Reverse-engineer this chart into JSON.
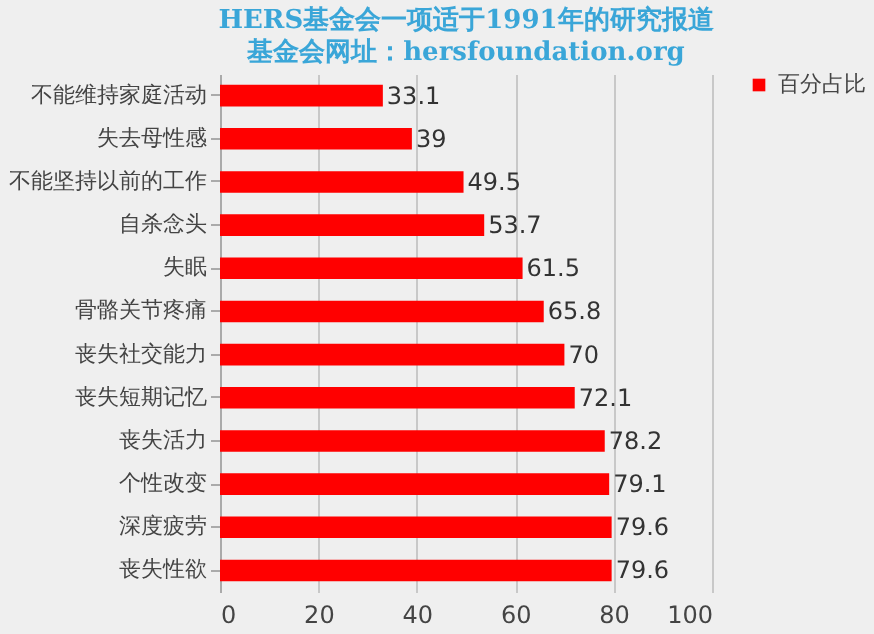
{
  "chart_data": {
    "type": "bar",
    "orientation": "horizontal",
    "title": "HERS基金会一项适于1991年的研究报道",
    "subtitle": "基金会网址：hersfoundation.org",
    "categories": [
      "不能维持家庭活动",
      "失去母性感",
      "不能坚持以前的工作",
      "自杀念头",
      "失眠",
      "骨骼关节疼痛",
      "丧失社交能力",
      "丧失短期记忆",
      "丧失活力",
      "个性改变",
      "深度疲劳",
      "丧失性欲"
    ],
    "series": [
      {
        "name": "百分占比",
        "color": "#ff0000",
        "values": [
          33.1,
          39,
          49.5,
          53.7,
          61.5,
          65.8,
          70,
          72.1,
          78.2,
          79.1,
          79.6,
          79.6
        ]
      }
    ],
    "xlim": [
      0,
      100
    ],
    "xticks": [
      0,
      20,
      40,
      60,
      80,
      100
    ],
    "grid": "x",
    "legend": "right",
    "data_labels": true
  }
}
